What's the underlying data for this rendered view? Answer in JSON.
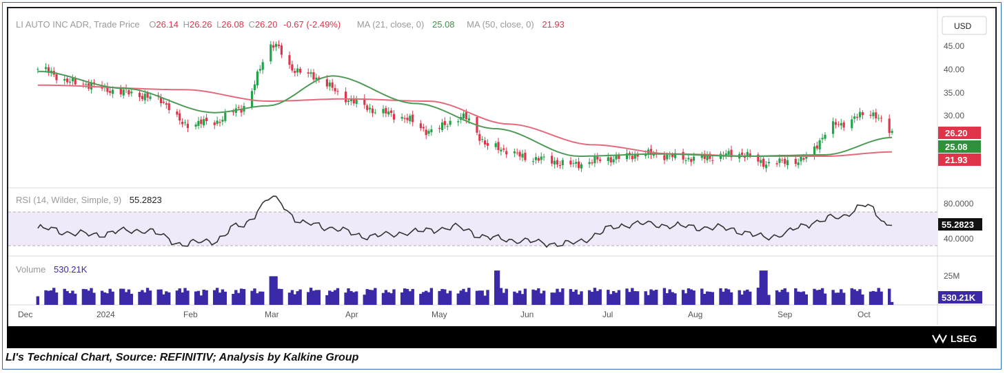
{
  "caption": "LI's Technical Chart, Source: REFINITIV; Analysis by Kalkine Group",
  "brand": "LSEG",
  "colors": {
    "up": "#22a34a",
    "down": "#e0344a",
    "ma21": "#4e9a57",
    "ma50": "#e5697b",
    "rsi": "#333333",
    "rsi_band": "#efe9f9",
    "volume": "#3a2aa8"
  },
  "price_panel": {
    "instrument": "LI AUTO INC ADR, Trade Price",
    "ohlc": [
      {
        "key": "O",
        "value": "26.14"
      },
      {
        "key": "H",
        "value": "26.26"
      },
      {
        "key": "L",
        "value": "26.08"
      },
      {
        "key": "C",
        "value": "26.20"
      }
    ],
    "change": "-0.67 (-2.49%)",
    "ma21_label": "MA (21, close, 0)",
    "ma21_value": "25.08",
    "ma50_label": "MA (50, close, 0)",
    "ma50_value": "21.93",
    "currency": "USD",
    "axis_ticks": [
      "45.00",
      "40.00",
      "35.00",
      "30.00"
    ],
    "tag_close": "26.20",
    "tag_ma21": "25.08",
    "tag_ma50": "21.93"
  },
  "rsi_panel": {
    "label": "RSI (14, Wilder, Simple, 9)",
    "value": "55.2823",
    "axis_ticks": [
      "80.0000",
      "40.0000"
    ],
    "tag": "55.2823"
  },
  "volume_panel": {
    "label": "Volume",
    "value": "530.21K",
    "axis_ticks": [
      "25M"
    ],
    "tag": "530.21K"
  },
  "x_axis": {
    "labels": [
      "Dec",
      "2024",
      "Feb",
      "Mar",
      "Apr",
      "May",
      "Jun",
      "Jul",
      "Aug",
      "Sep",
      "Oct"
    ]
  },
  "chart_data": {
    "type": "candlestick",
    "title": "LI AUTO INC ADR, Trade Price",
    "currency": "USD",
    "ylim": [
      20,
      48
    ],
    "close_series": [
      {
        "x": "2023-12-01",
        "y": 40.0
      },
      {
        "x": "2023-12-15",
        "y": 37.0
      },
      {
        "x": "2024-01-02",
        "y": 35.0
      },
      {
        "x": "2024-01-15",
        "y": 33.5
      },
      {
        "x": "2024-01-25",
        "y": 28.0
      },
      {
        "x": "2024-02-05",
        "y": 28.5
      },
      {
        "x": "2024-02-15",
        "y": 31.5
      },
      {
        "x": "2024-02-27",
        "y": 45.5
      },
      {
        "x": "2024-03-05",
        "y": 40.0
      },
      {
        "x": "2024-03-15",
        "y": 38.0
      },
      {
        "x": "2024-03-25",
        "y": 33.5
      },
      {
        "x": "2024-04-05",
        "y": 31.0
      },
      {
        "x": "2024-04-15",
        "y": 29.5
      },
      {
        "x": "2024-04-25",
        "y": 26.5
      },
      {
        "x": "2024-05-08",
        "y": 29.5
      },
      {
        "x": "2024-05-18",
        "y": 23.0
      },
      {
        "x": "2024-06-03",
        "y": 20.5
      },
      {
        "x": "2024-06-18",
        "y": 19.2
      },
      {
        "x": "2024-07-02",
        "y": 20.5
      },
      {
        "x": "2024-07-15",
        "y": 21.5
      },
      {
        "x": "2024-08-01",
        "y": 20.5
      },
      {
        "x": "2024-08-20",
        "y": 21.5
      },
      {
        "x": "2024-08-28",
        "y": 19.5
      },
      {
        "x": "2024-09-10",
        "y": 20.0
      },
      {
        "x": "2024-09-25",
        "y": 28.0
      },
      {
        "x": "2024-10-07",
        "y": 30.5
      },
      {
        "x": "2024-10-15",
        "y": 26.2
      }
    ],
    "ma21": [
      {
        "x": "2023-12-01",
        "y": 39.5
      },
      {
        "x": "2024-01-02",
        "y": 35.8
      },
      {
        "x": "2024-02-05",
        "y": 30.5
      },
      {
        "x": "2024-02-25",
        "y": 32.0
      },
      {
        "x": "2024-03-20",
        "y": 38.5
      },
      {
        "x": "2024-04-20",
        "y": 32.5
      },
      {
        "x": "2024-05-20",
        "y": 27.0
      },
      {
        "x": "2024-06-20",
        "y": 21.0
      },
      {
        "x": "2024-07-20",
        "y": 21.5
      },
      {
        "x": "2024-08-20",
        "y": 21.0
      },
      {
        "x": "2024-09-20",
        "y": 21.3
      },
      {
        "x": "2024-10-15",
        "y": 25.08
      }
    ],
    "ma50": [
      {
        "x": "2023-12-01",
        "y": 36.5
      },
      {
        "x": "2024-01-25",
        "y": 35.5
      },
      {
        "x": "2024-02-25",
        "y": 33.0
      },
      {
        "x": "2024-03-25",
        "y": 33.5
      },
      {
        "x": "2024-04-25",
        "y": 33.0
      },
      {
        "x": "2024-05-25",
        "y": 28.0
      },
      {
        "x": "2024-06-25",
        "y": 23.5
      },
      {
        "x": "2024-07-25",
        "y": 21.5
      },
      {
        "x": "2024-08-25",
        "y": 21.0
      },
      {
        "x": "2024-09-20",
        "y": 21.0
      },
      {
        "x": "2024-10-15",
        "y": 21.93
      }
    ],
    "rsi": {
      "ylim": [
        25,
        95
      ],
      "band": [
        40,
        70
      ],
      "points": [
        {
          "x": "2023-12-01",
          "y": 52
        },
        {
          "x": "2023-12-20",
          "y": 45
        },
        {
          "x": "2024-01-10",
          "y": 50
        },
        {
          "x": "2024-01-25",
          "y": 34
        },
        {
          "x": "2024-02-05",
          "y": 38
        },
        {
          "x": "2024-02-15",
          "y": 55
        },
        {
          "x": "2024-02-27",
          "y": 86
        },
        {
          "x": "2024-03-10",
          "y": 57
        },
        {
          "x": "2024-04-05",
          "y": 43
        },
        {
          "x": "2024-04-20",
          "y": 48
        },
        {
          "x": "2024-05-05",
          "y": 53
        },
        {
          "x": "2024-05-20",
          "y": 40
        },
        {
          "x": "2024-06-15",
          "y": 34
        },
        {
          "x": "2024-07-10",
          "y": 57
        },
        {
          "x": "2024-08-15",
          "y": 52
        },
        {
          "x": "2024-08-28",
          "y": 42
        },
        {
          "x": "2024-09-25",
          "y": 64
        },
        {
          "x": "2024-10-05",
          "y": 78
        },
        {
          "x": "2024-10-15",
          "y": 55.28
        }
      ]
    },
    "volume": {
      "unit": "shares",
      "latest": 530210,
      "spikes": [
        {
          "x": "2024-02-27",
          "y": 20000000
        },
        {
          "x": "2024-05-20",
          "y": 24000000
        },
        {
          "x": "2024-08-28",
          "y": 24000000
        }
      ]
    }
  }
}
